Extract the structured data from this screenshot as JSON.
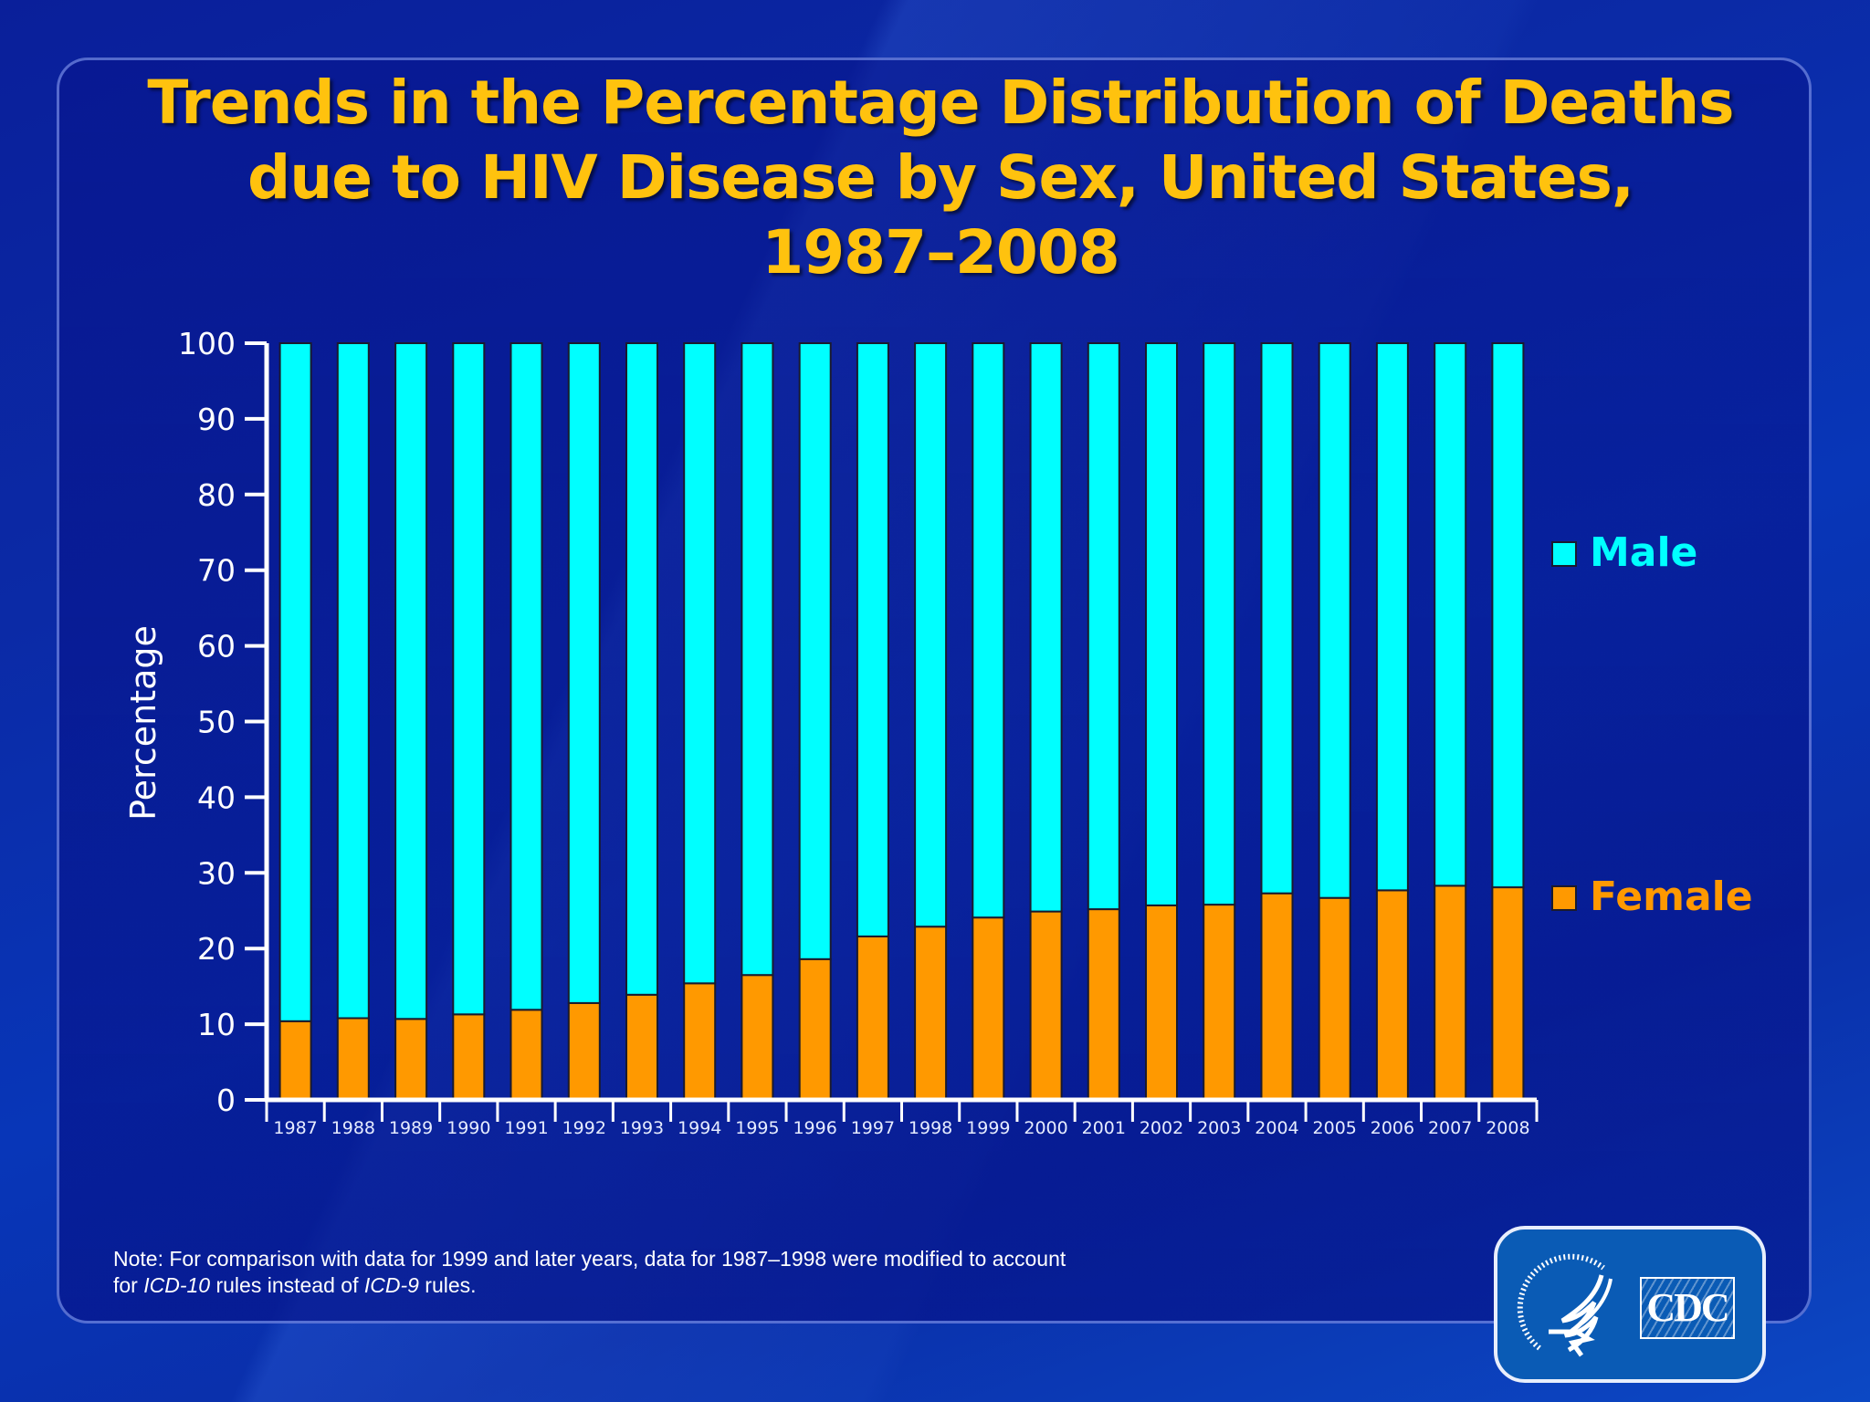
{
  "slide": {
    "title_lines": [
      "Trends in the Percentage Distribution of Deaths",
      "due to HIV Disease by Sex, United States,",
      "1987–2008"
    ],
    "note": {
      "line1": "Note: For comparison with data for 1999 and later years, data for 1987–1998 were modified to account",
      "line2_prefix": "for ",
      "icd10": "ICD-10",
      "line2_mid": " rules instead of ",
      "icd9": "ICD-9",
      "line2_suffix": " rules."
    },
    "logo": {
      "agency_label": "CDC",
      "seal_icon": "hhs-eagle-seal-icon"
    }
  },
  "colors": {
    "title": "#ffc20e",
    "male": "#00ffff",
    "female": "#ff9900",
    "axis": "#ffffff"
  },
  "chart_data": {
    "type": "bar",
    "stacked": true,
    "title": "Trends in the Percentage Distribution of Deaths due to HIV Disease by Sex, United States, 1987–2008",
    "xlabel": "",
    "ylabel": "Percentage",
    "ylim": [
      0,
      100
    ],
    "yticks": [
      0,
      10,
      20,
      30,
      40,
      50,
      60,
      70,
      80,
      90,
      100
    ],
    "grid": false,
    "legend_position": "right",
    "categories": [
      "1987",
      "1988",
      "1989",
      "1990",
      "1991",
      "1992",
      "1993",
      "1994",
      "1995",
      "1996",
      "1997",
      "1998",
      "1999",
      "2000",
      "2001",
      "2002",
      "2003",
      "2004",
      "2005",
      "2006",
      "2007",
      "2008"
    ],
    "series": [
      {
        "name": "Female",
        "color": "#ff9900",
        "values": [
          10.4,
          10.8,
          10.7,
          11.3,
          11.9,
          12.8,
          13.9,
          15.4,
          16.5,
          18.6,
          21.6,
          22.9,
          24.1,
          24.9,
          25.2,
          25.7,
          25.8,
          27.3,
          26.7,
          27.7,
          28.3,
          28.1
        ]
      },
      {
        "name": "Male",
        "color": "#00ffff",
        "values": [
          89.6,
          89.2,
          89.3,
          88.7,
          88.1,
          87.2,
          86.1,
          84.6,
          83.5,
          81.4,
          78.4,
          77.1,
          75.9,
          75.1,
          74.8,
          74.3,
          74.2,
          72.7,
          73.3,
          72.3,
          71.7,
          71.9
        ]
      }
    ],
    "legend": [
      {
        "label": "Male",
        "color": "#00ffff"
      },
      {
        "label": "Female",
        "color": "#ff9900"
      }
    ]
  }
}
